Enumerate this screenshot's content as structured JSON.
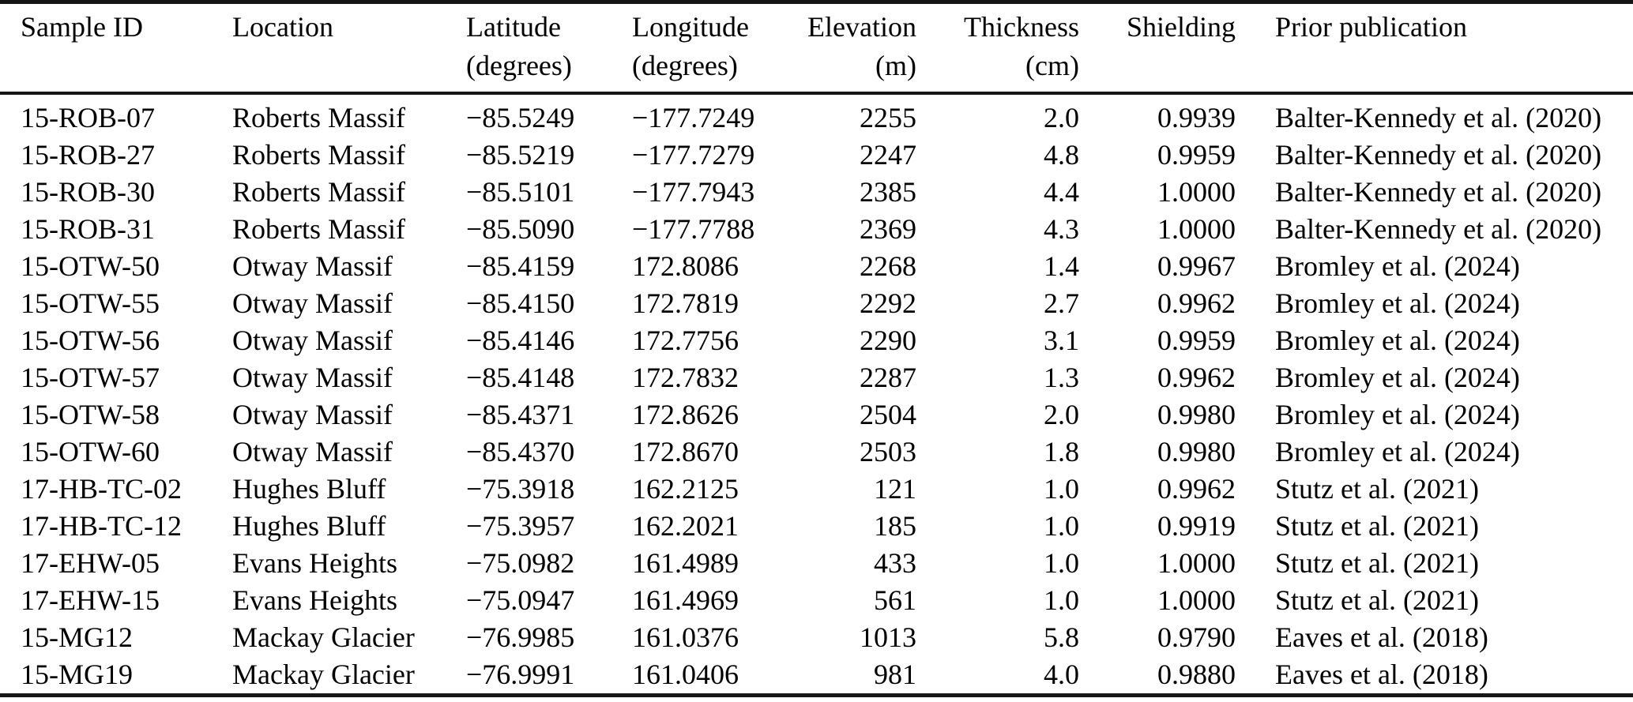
{
  "table": {
    "columns": [
      {
        "label": "Sample ID",
        "unit": ""
      },
      {
        "label": "Location",
        "unit": ""
      },
      {
        "label": "Latitude",
        "unit": "(degrees)"
      },
      {
        "label": "Longitude",
        "unit": "(degrees)"
      },
      {
        "label": "Elevation",
        "unit": "(m)"
      },
      {
        "label": "Thickness",
        "unit": "(cm)"
      },
      {
        "label": "Shielding",
        "unit": ""
      },
      {
        "label": "Prior publication",
        "unit": ""
      }
    ],
    "rows": [
      [
        "15-ROB-07",
        "Roberts Massif",
        "−85.5249",
        "−177.7249",
        "2255",
        "2.0",
        "0.9939",
        "Balter-Kennedy et al. (2020)"
      ],
      [
        "15-ROB-27",
        "Roberts Massif",
        "−85.5219",
        "−177.7279",
        "2247",
        "4.8",
        "0.9959",
        "Balter-Kennedy et al. (2020)"
      ],
      [
        "15-ROB-30",
        "Roberts Massif",
        "−85.5101",
        "−177.7943",
        "2385",
        "4.4",
        "1.0000",
        "Balter-Kennedy et al. (2020)"
      ],
      [
        "15-ROB-31",
        "Roberts Massif",
        "−85.5090",
        "−177.7788",
        "2369",
        "4.3",
        "1.0000",
        "Balter-Kennedy et al. (2020)"
      ],
      [
        "15-OTW-50",
        "Otway Massif",
        "−85.4159",
        "172.8086",
        "2268",
        "1.4",
        "0.9967",
        "Bromley et al. (2024)"
      ],
      [
        "15-OTW-55",
        "Otway Massif",
        "−85.4150",
        "172.7819",
        "2292",
        "2.7",
        "0.9962",
        "Bromley et al. (2024)"
      ],
      [
        "15-OTW-56",
        "Otway Massif",
        "−85.4146",
        "172.7756",
        "2290",
        "3.1",
        "0.9959",
        "Bromley et al. (2024)"
      ],
      [
        "15-OTW-57",
        "Otway Massif",
        "−85.4148",
        "172.7832",
        "2287",
        "1.3",
        "0.9962",
        "Bromley et al. (2024)"
      ],
      [
        "15-OTW-58",
        "Otway Massif",
        "−85.4371",
        "172.8626",
        "2504",
        "2.0",
        "0.9980",
        "Bromley et al. (2024)"
      ],
      [
        "15-OTW-60",
        "Otway Massif",
        "−85.4370",
        "172.8670",
        "2503",
        "1.8",
        "0.9980",
        "Bromley et al. (2024)"
      ],
      [
        "17-HB-TC-02",
        "Hughes Bluff",
        "−75.3918",
        "162.2125",
        "121",
        "1.0",
        "0.9962",
        "Stutz et al. (2021)"
      ],
      [
        "17-HB-TC-12",
        "Hughes Bluff",
        "−75.3957",
        "162.2021",
        "185",
        "1.0",
        "0.9919",
        "Stutz et al. (2021)"
      ],
      [
        "17-EHW-05",
        "Evans Heights",
        "−75.0982",
        "161.4989",
        "433",
        "1.0",
        "1.0000",
        "Stutz et al. (2021)"
      ],
      [
        "17-EHW-15",
        "Evans Heights",
        "−75.0947",
        "161.4969",
        "561",
        "1.0",
        "1.0000",
        "Stutz et al. (2021)"
      ],
      [
        "15-MG12",
        "Mackay Glacier",
        "−76.9985",
        "161.0376",
        "1013",
        "5.8",
        "0.9790",
        "Eaves et al. (2018)"
      ],
      [
        "15-MG19",
        "Mackay Glacier",
        "−76.9991",
        "161.0406",
        "981",
        "4.0",
        "0.9880",
        "Eaves et al. (2018)"
      ]
    ],
    "colors": {
      "text": "#000000",
      "rule": "#161616",
      "background": "#ffffff"
    }
  }
}
